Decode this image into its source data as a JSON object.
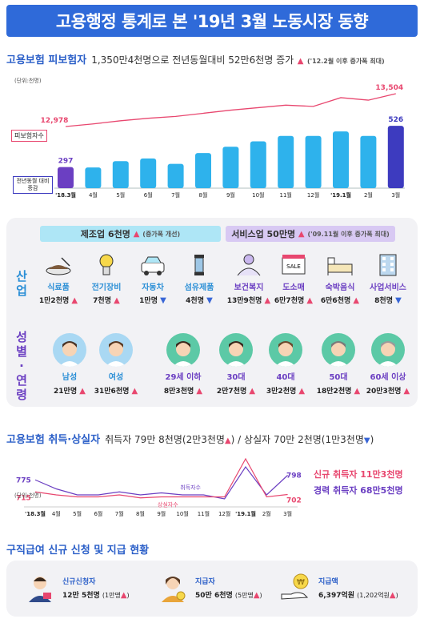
{
  "title": "고용행정 통계로 본 '19년 3월 노동시장 동향",
  "insured": {
    "head": "고용보험 피보험자",
    "summary": "1,350만4천명으로 전년동월대비 52만6천명 증가",
    "summary_note": "('12.2월 이후 증가폭 최대)",
    "unit": "(단위:천명)",
    "line_label": "피보험자수",
    "bar_label": "전년동월 대비 증감"
  },
  "chart_data": [
    {
      "type": "bar",
      "categories": [
        "'18.3월",
        "4월",
        "5월",
        "6월",
        "7월",
        "8월",
        "9월",
        "10월",
        "11월",
        "12월",
        "'19.1월",
        "2월",
        "3월"
      ],
      "series": [
        {
          "name": "전년동월 대비 증감",
          "values": [
            297,
            295,
            330,
            345,
            315,
            375,
            410,
            440,
            470,
            470,
            495,
            470,
            526
          ]
        },
        {
          "name": "피보험자수",
          "values": [
            12978,
            13020,
            13070,
            13110,
            13140,
            13190,
            13240,
            13280,
            13320,
            13300,
            13440,
            13400,
            13504
          ]
        }
      ],
      "labeled_values": {
        "first_bar": "297",
        "last_bar": "526",
        "first_line": "12,978",
        "last_line": "13,504"
      }
    },
    {
      "type": "line",
      "categories": [
        "'18.3월",
        "4월",
        "5월",
        "6월",
        "7월",
        "8월",
        "9월",
        "10월",
        "11월",
        "12월",
        "'19.1월",
        "2월",
        "3월"
      ],
      "series": [
        {
          "name": "취득자수",
          "values": [
            775,
            730,
            700,
            700,
            715,
            700,
            710,
            700,
            700,
            680,
            840,
            700,
            798
          ]
        },
        {
          "name": "상실자수",
          "values": [
            715,
            700,
            690,
            690,
            700,
            685,
            690,
            690,
            690,
            690,
            880,
            690,
            702
          ]
        }
      ],
      "labeled_values": {
        "first_acq": "775",
        "first_loss": "715",
        "last_acq": "798",
        "last_loss": "702"
      }
    }
  ],
  "industry": {
    "label": "산업",
    "manufacturing": {
      "title": "제조업 6천명",
      "note": "(증가폭 개선)"
    },
    "service": {
      "title": "서비스업 50만명",
      "note": "('09.11월 이후 증가폭 최대)"
    },
    "items": [
      {
        "name": "식료품",
        "value": "1만2천명",
        "dir": "up",
        "icon": "food-icon"
      },
      {
        "name": "전기장비",
        "value": "7천명",
        "dir": "up",
        "icon": "lightbulb-icon"
      },
      {
        "name": "자동차",
        "value": "1만명",
        "dir": "down",
        "icon": "car-icon"
      },
      {
        "name": "섬유제품",
        "value": "4천명",
        "dir": "down",
        "icon": "thread-spool-icon"
      },
      {
        "name": "보건복지",
        "value": "13만9천명",
        "dir": "up",
        "icon": "health-care-icon"
      },
      {
        "name": "도소매",
        "value": "6만7천명",
        "dir": "up",
        "icon": "store-icon"
      },
      {
        "name": "숙박음식",
        "value": "6만6천명",
        "dir": "up",
        "icon": "bed-icon"
      },
      {
        "name": "사업서비스",
        "value": "8천명",
        "dir": "down",
        "icon": "building-icon"
      }
    ],
    "sale_sign": "SALE"
  },
  "demographics": {
    "label": "성별·연령",
    "items": [
      {
        "name": "남성",
        "value": "21만명",
        "dir": "up"
      },
      {
        "name": "여성",
        "value": "31만6천명",
        "dir": "up"
      },
      {
        "name": "29세 이하",
        "value": "8만3천명",
        "dir": "up"
      },
      {
        "name": "30대",
        "value": "2만7천명",
        "dir": "up"
      },
      {
        "name": "40대",
        "value": "3만2천명",
        "dir": "up"
      },
      {
        "name": "50대",
        "value": "18만2천명",
        "dir": "up"
      },
      {
        "name": "60세 이상",
        "value": "20만3천명",
        "dir": "up"
      }
    ]
  },
  "flows": {
    "head": "고용보험 취득·상실자",
    "summary": "취득자 79만 8천명(2만3천명",
    "summary_mid": ") / 상실자 70만 2천명(1만3천명",
    "summary_end": ")",
    "unit": "(단위:천명)",
    "acq_label": "취득자수",
    "loss_label": "상실자수",
    "new_acq": "신규 취득자 11만3천명",
    "career_acq": "경력 취득자 68만5천명"
  },
  "benefits": {
    "head": "구직급여 신규 신청 및 지급 현황",
    "items": [
      {
        "title": "신규신청자",
        "value": "12만 5천명",
        "note": "(1만명",
        "icon": "applicant-icon"
      },
      {
        "title": "지급자",
        "value": "50만 6천명",
        "note": "(5만명",
        "icon": "recipient-icon"
      },
      {
        "title": "지급액",
        "value": "6,397억원",
        "note": "(1,202억원",
        "icon": "money-hand-icon"
      }
    ],
    "note_close": ")"
  },
  "colors": {
    "blue": "#2f6ad9",
    "pink": "#e8476f",
    "bar": "#2eb2ec",
    "bar_last": "#3d3bbf",
    "purple": "#6b3fc2"
  },
  "symbols": {
    "up": "▲",
    "down": "▼"
  }
}
